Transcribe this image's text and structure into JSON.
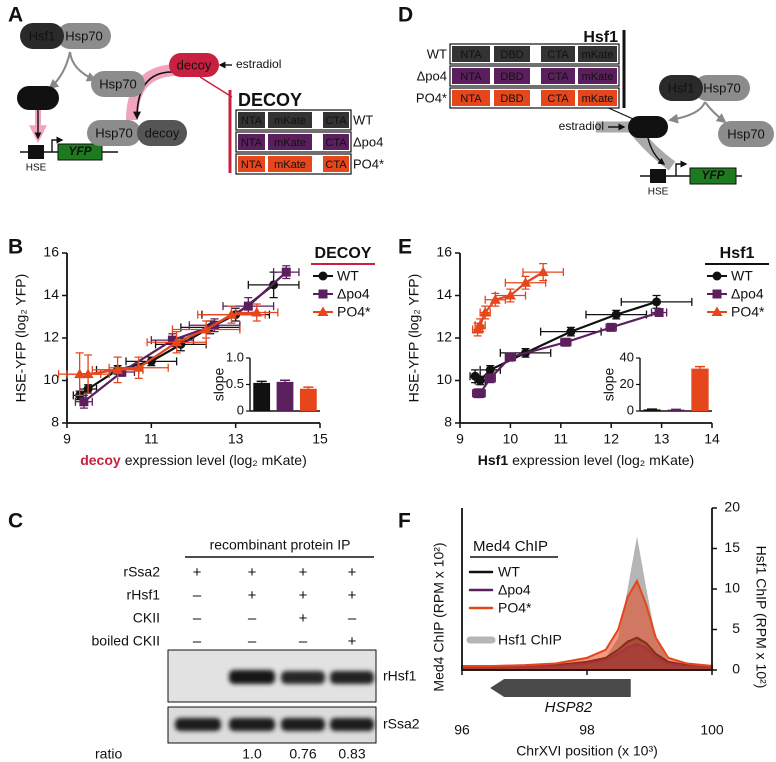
{
  "panel_labels": [
    "A",
    "B",
    "C",
    "D",
    "E",
    "F"
  ],
  "diagram_a": {
    "complex": [
      "Hsf1",
      "Hsp70"
    ],
    "hsp70": "Hsp70",
    "hsf1": "Hsf1",
    "decoy": "decoy",
    "inducer": "estradiol",
    "bound": [
      "Hsp70",
      "decoy"
    ],
    "reporter": {
      "promoter": "HSE",
      "gene": "YFP"
    },
    "construct_title": "DECOY",
    "constructs": [
      {
        "name": "WT",
        "color": "#333333",
        "domains": [
          "NTA",
          "mKate",
          "CTA"
        ]
      },
      {
        "name": "Δpo4",
        "color": "#5b1f5e",
        "domains": [
          "NTA",
          "mKate",
          "CTA"
        ]
      },
      {
        "name": "PO4*",
        "color": "#e5461c",
        "domains": [
          "NTA",
          "mKate",
          "CTA"
        ]
      }
    ]
  },
  "diagram_d": {
    "construct_title": "Hsf1",
    "constructs": [
      {
        "name": "WT",
        "color": "#333333",
        "domains": [
          "NTA",
          "DBD",
          "CTA",
          "mKate"
        ]
      },
      {
        "name": "Δpo4",
        "color": "#5b1f5e",
        "domains": [
          "NTA",
          "DBD",
          "CTA",
          "mKate"
        ]
      },
      {
        "name": "PO4*",
        "color": "#e5461c",
        "domains": [
          "NTA",
          "DBD",
          "CTA",
          "mKate"
        ]
      }
    ],
    "complex": [
      "Hsf1",
      "Hsp70"
    ],
    "hsp70": "Hsp70",
    "hsf1": "Hsf1",
    "inducer": "estradiol",
    "reporter": {
      "promoter": "HSE",
      "gene": "YFP"
    }
  },
  "blot": {
    "header": "recombinant protein IP",
    "rows": [
      {
        "label": "rSsa2",
        "lanes": [
          "+",
          "+",
          "+",
          "+"
        ]
      },
      {
        "label": "rHsf1",
        "lanes": [
          "–",
          "+",
          "+",
          "+"
        ]
      },
      {
        "label": "CKII",
        "lanes": [
          "–",
          "–",
          "+",
          "–"
        ]
      },
      {
        "label": "boiled CKII",
        "lanes": [
          "–",
          "–",
          "–",
          "+"
        ]
      }
    ],
    "bands": [
      "rHsf1",
      "rSsa2"
    ],
    "ratio": {
      "label": "ratio",
      "values": [
        "1.0",
        "0.76",
        "0.83"
      ]
    }
  },
  "chart_data": [
    {
      "type": "line",
      "ylabel": "HSE-YFP (log₂ YFP)",
      "xlabel": {
        "emphasis": "decoy",
        "rest": "expression level (log₂ mKate)"
      },
      "xlim": [
        9,
        15
      ],
      "xticks": [
        9,
        11,
        13,
        15
      ],
      "ylim": [
        8,
        16
      ],
      "yticks": [
        8,
        10,
        12,
        14,
        16
      ],
      "legend_title": "DECOY",
      "legend_title_color": "#c8203f",
      "series": [
        {
          "name": "WT",
          "color": "#111111",
          "marker": "circle",
          "x": [
            9.3,
            9.5,
            10.2,
            11.0,
            11.7,
            12.4,
            13.0,
            13.9
          ],
          "values": [
            9.3,
            9.6,
            10.5,
            10.9,
            11.7,
            12.5,
            13.1,
            14.5
          ],
          "xerr": [
            0.15,
            0.2,
            0.5,
            0.6,
            0.6,
            0.7,
            0.8,
            0.6
          ],
          "yerr": [
            0.2,
            0.2,
            0.2,
            0.2,
            0.3,
            0.3,
            0.3,
            0.6
          ]
        },
        {
          "name": "Δpo4",
          "color": "#5b1f5e",
          "marker": "square",
          "x": [
            9.4,
            10.3,
            11.5,
            12.5,
            13.3,
            14.2
          ],
          "values": [
            9.0,
            10.4,
            11.9,
            12.6,
            13.5,
            15.1
          ],
          "xerr": [
            0.2,
            0.3,
            0.5,
            0.6,
            0.6,
            0.3
          ],
          "yerr": [
            0.3,
            0.2,
            0.3,
            0.3,
            0.4,
            0.3
          ]
        },
        {
          "name": "PO4*",
          "color": "#e5461c",
          "marker": "triangle",
          "x": [
            9.3,
            9.5,
            10.2,
            10.7,
            11.6,
            12.3,
            12.9,
            13.5
          ],
          "values": [
            10.3,
            10.3,
            10.5,
            10.6,
            11.8,
            12.4,
            13.1,
            13.2
          ],
          "xerr": [
            0.5,
            0.5,
            0.6,
            0.7,
            0.7,
            0.8,
            0.8,
            0.5
          ],
          "yerr": [
            1.0,
            0.9,
            0.6,
            0.5,
            0.5,
            0.4,
            0.4,
            0.4
          ]
        }
      ]
    },
    {
      "type": "bar",
      "ylabel": "slope",
      "ylim": [
        0,
        1
      ],
      "yticks": [
        0,
        0.5,
        {
          "value": 1,
          "label": "1.0"
        }
      ],
      "values": [
        0.53,
        0.55,
        0.42
      ],
      "errors": [
        0.03,
        0.03,
        0.03
      ],
      "colors": [
        "#111111",
        "#5b1f5e",
        "#e5461c"
      ]
    },
    {
      "type": "line",
      "ylabel": "HSE-YFP (log₂ YFP)",
      "xlabel": {
        "emphasis": "Hsf1",
        "rest": "expression level (log₂ mKate)"
      },
      "xlim": [
        9,
        14
      ],
      "xticks": [
        9,
        10,
        11,
        12,
        13,
        14
      ],
      "ylim": [
        8,
        16
      ],
      "yticks": [
        8,
        10,
        12,
        14,
        16
      ],
      "legend_title": "Hsf1",
      "legend_title_color": "#111111",
      "series": [
        {
          "name": "WT",
          "color": "#111111",
          "marker": "circle",
          "x": [
            9.3,
            9.4,
            9.6,
            10.3,
            11.2,
            12.1,
            12.9
          ],
          "values": [
            10.2,
            10.0,
            10.5,
            11.3,
            12.3,
            13.1,
            13.7
          ],
          "xerr": [
            0.1,
            0.1,
            0.2,
            0.5,
            0.6,
            0.6,
            0.7
          ],
          "yerr": [
            0.3,
            0.2,
            0.2,
            0.2,
            0.2,
            0.2,
            0.3
          ]
        },
        {
          "name": "Δpo4",
          "color": "#5b1f5e",
          "marker": "square",
          "x": [
            9.35,
            9.4,
            9.6,
            10.0,
            11.1,
            12.0,
            12.95
          ],
          "values": [
            9.4,
            9.4,
            10.1,
            11.1,
            11.8,
            12.5,
            13.2
          ],
          "xerr": [
            0.1,
            0.1,
            0.1,
            0.1,
            0.1,
            0.1,
            0.15
          ],
          "yerr": [
            0.2,
            0.2,
            0.2,
            0.1,
            0.1,
            0.1,
            0.1
          ]
        },
        {
          "name": "PO4*",
          "color": "#e5461c",
          "marker": "triangle",
          "x": [
            9.35,
            9.4,
            9.5,
            9.7,
            10.0,
            10.3,
            10.65
          ],
          "values": [
            12.4,
            12.6,
            13.2,
            13.8,
            14.0,
            14.6,
            15.1
          ],
          "xerr": [
            0.1,
            0.1,
            0.1,
            0.2,
            0.3,
            0.4,
            0.4
          ],
          "yerr": [
            0.3,
            0.3,
            0.3,
            0.3,
            0.3,
            0.3,
            0.4
          ]
        }
      ]
    },
    {
      "type": "bar",
      "ylabel": "slope",
      "ylim": [
        0,
        40
      ],
      "yticks": [
        0,
        20,
        40
      ],
      "values": [
        1.2,
        1.0,
        32
      ],
      "errors": [
        0.2,
        0.2,
        1.5
      ],
      "colors": [
        "#111111",
        "#5b1f5e",
        "#e5461c"
      ]
    },
    {
      "type": "area",
      "ylabel": "Med4 ChIP (RPM x 10²)",
      "y2label": "Hsf1 ChIP (RPM x 10²)",
      "xlabel": "ChrXVI position (x 10³)",
      "xlim": [
        96,
        100
      ],
      "xticks": [
        96,
        98,
        100
      ],
      "ylim": [
        0,
        2
      ],
      "y2lim": [
        0,
        20
      ],
      "y2ticks": [
        0,
        5,
        10,
        15,
        20
      ],
      "legend_title": "Med4 ChIP",
      "gene": {
        "label": "HSP82",
        "start": 96.45,
        "end": 98.7
      },
      "x": [
        96,
        96.5,
        97,
        97.5,
        98,
        98.3,
        98.5,
        98.65,
        98.8,
        98.95,
        99.1,
        99.3,
        99.6,
        100
      ],
      "series": [
        {
          "name": "Hsf1 ChIP",
          "color": "#b5b5b5",
          "axis": "y2",
          "values": [
            0.3,
            0.3,
            0.3,
            0.4,
            0.8,
            1.5,
            4,
            10,
            16.5,
            10,
            4,
            1,
            0.4,
            0.3
          ]
        },
        {
          "name": "WT",
          "color": "#111111",
          "values": [
            0.05,
            0.05,
            0.05,
            0.06,
            0.1,
            0.15,
            0.25,
            0.35,
            0.4,
            0.33,
            0.2,
            0.1,
            0.06,
            0.05
          ]
        },
        {
          "name": "Δpo4",
          "color": "#5b1f5e",
          "values": [
            0.04,
            0.04,
            0.04,
            0.05,
            0.08,
            0.12,
            0.2,
            0.28,
            0.32,
            0.27,
            0.16,
            0.08,
            0.05,
            0.04
          ]
        },
        {
          "name": "PO4*",
          "color": "#e5461c",
          "values": [
            0.05,
            0.05,
            0.06,
            0.08,
            0.15,
            0.25,
            0.5,
            0.9,
            1.1,
            0.8,
            0.4,
            0.15,
            0.08,
            0.05
          ]
        }
      ]
    }
  ]
}
